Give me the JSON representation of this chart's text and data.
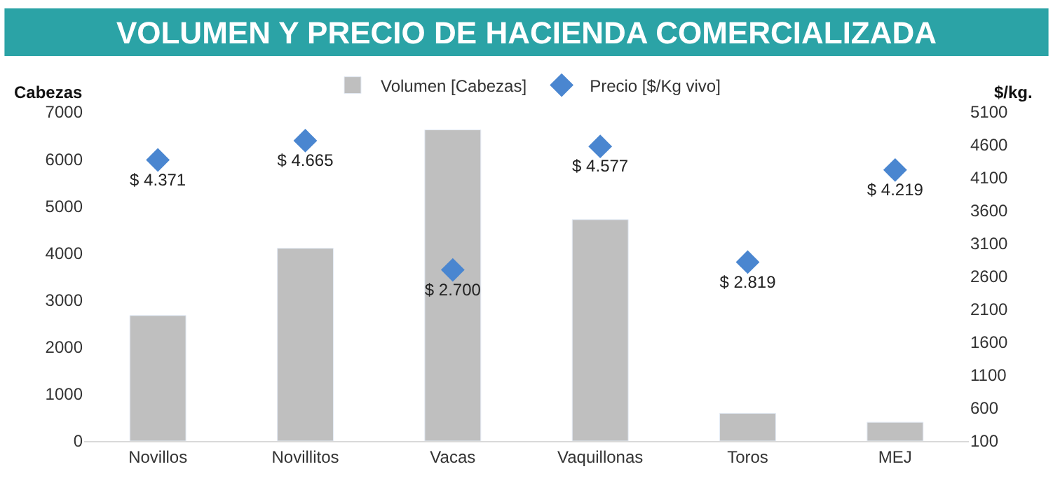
{
  "chart_data": {
    "type": "bar",
    "title": "VOLUMEN Y PRECIO DE HACIENDA COMERCIALIZADA",
    "ylabel": "Cabezas",
    "y2label": "$/kg.",
    "categories": [
      "Novillos",
      "Novillitos",
      "Vacas",
      "Vaquillonas",
      "Toros",
      "MEJ"
    ],
    "series": [
      {
        "name": "Volumen [Cabezas]",
        "color": "#bfbfbf",
        "values": [
          2670,
          4100,
          6620,
          4710,
          590,
          400
        ]
      },
      {
        "name": "Precio [$/Kg vivo]",
        "type": "scatter",
        "axis": "y2",
        "marker": "diamond",
        "color": "#4a86d0",
        "values": [
          4371,
          4665,
          2700,
          4577,
          2819,
          4219
        ],
        "value_labels": [
          "$ 4.371",
          "$ 4.665",
          "$ 2.700",
          "$ 4.577",
          "$ 2.819",
          "$ 4.219"
        ]
      }
    ],
    "ylim": [
      0,
      7000
    ],
    "yticks": [
      0,
      1000,
      2000,
      3000,
      4000,
      5000,
      6000,
      7000
    ],
    "y2lim": [
      100,
      5100
    ],
    "y2ticks": [
      100,
      600,
      1100,
      1600,
      2100,
      2600,
      3100,
      3600,
      4100,
      4600,
      5100
    ],
    "legend": "top"
  }
}
